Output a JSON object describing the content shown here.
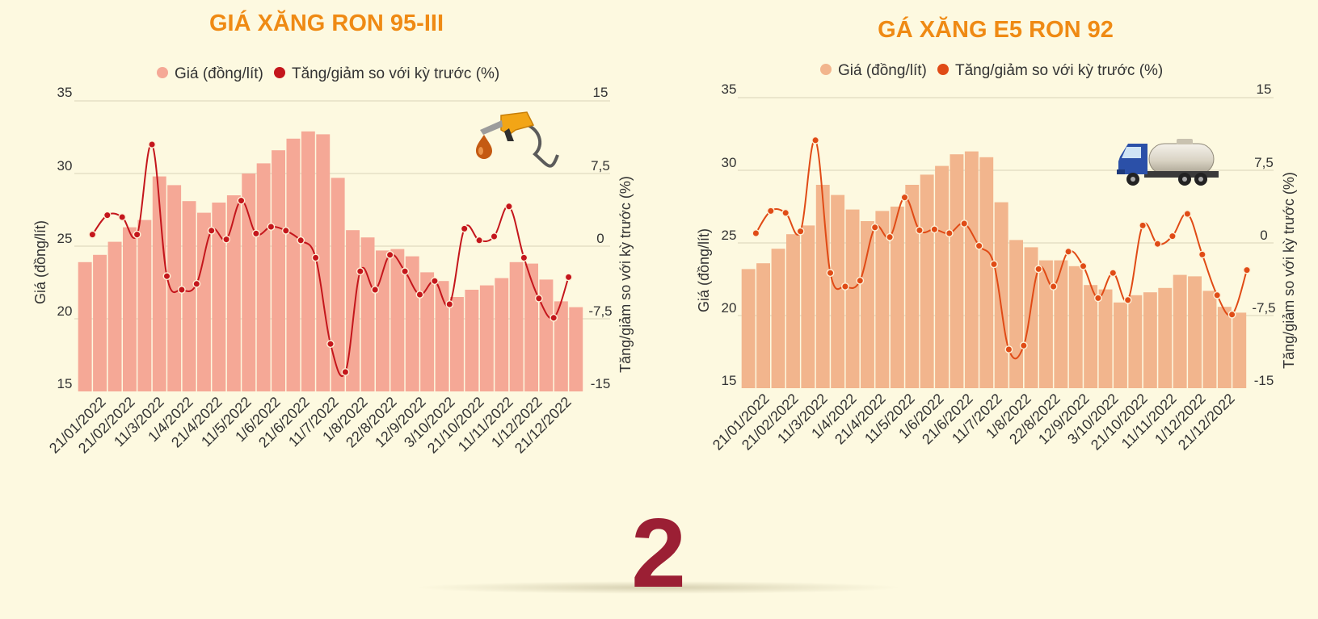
{
  "colors": {
    "background": "#fdf9e0",
    "title": "#ef8a14",
    "page_number": "#9b1f34"
  },
  "page_number": "2",
  "chart_data": [
    {
      "type": "bar",
      "title": "GIÁ XĂNG RON 95-III",
      "ylabel": "Giá (đồng/lít)",
      "y2label": "Tăng/giảm so với kỳ trước (%)",
      "ylim": [
        15,
        35
      ],
      "y2lim": [
        -15,
        15
      ],
      "yticks": [
        "35",
        "30",
        "25",
        "20",
        "15"
      ],
      "y2ticks": [
        "15",
        "7,5",
        "0",
        "-7,5",
        "-15"
      ],
      "legend_position": "top",
      "icon": "fuel-pump-icon",
      "bar_color": "#f5a896",
      "line_color": "#c4161c",
      "x_tick_labels": [
        "21/01/2022",
        "21/02/2022",
        "11/3/2022",
        "1/4/2022",
        "21/4/2022",
        "11/5/2022",
        "1/6/2022",
        "21/6/2022",
        "11/7/2022",
        "1/8/2022",
        "22/8/2022",
        "12/9/2022",
        "3/10/2022",
        "21/10/2022",
        "11/11/2022",
        "1/12/2022",
        "21/12/2022"
      ],
      "series": [
        {
          "name": "Giá (đồng/lít)",
          "type": "bar",
          "values": [
            23.9,
            24.4,
            25.3,
            26.3,
            26.8,
            29.8,
            29.2,
            28.1,
            27.3,
            28.0,
            28.5,
            30.0,
            30.7,
            31.6,
            32.4,
            32.9,
            32.7,
            29.7,
            26.1,
            25.6,
            24.7,
            24.8,
            24.3,
            23.2,
            22.6,
            21.5,
            22.0,
            22.3,
            22.8,
            23.9,
            23.8,
            22.7,
            21.2,
            20.8
          ]
        },
        {
          "name": "Tăng/giảm so với kỳ trước (%)",
          "type": "line",
          "values": [
            1.2,
            3.2,
            3.0,
            1.2,
            10.5,
            -3.1,
            -4.5,
            -3.9,
            1.6,
            0.7,
            4.7,
            1.3,
            2.0,
            1.6,
            0.6,
            -1.2,
            -10.1,
            -13.0,
            -2.6,
            -4.5,
            -0.9,
            -2.6,
            -5.0,
            -3.6,
            -6.0,
            1.8,
            0.6,
            1.0,
            4.1,
            -1.2,
            -5.4,
            -7.4,
            -3.2
          ]
        }
      ]
    },
    {
      "type": "bar",
      "title": "GÁ XĂNG E5 RON 92",
      "ylabel": "Giá (đồng/lít)",
      "y2label": "Tăng/giảm so với kỳ trước (%)",
      "ylim": [
        15,
        35
      ],
      "y2lim": [
        -15,
        15
      ],
      "yticks": [
        "35",
        "30",
        "25",
        "20",
        "15"
      ],
      "y2ticks": [
        "15",
        "7,5",
        "0",
        "-7,5",
        "-15"
      ],
      "legend_position": "top",
      "icon": "tanker-truck-icon",
      "bar_color": "#f2b58d",
      "line_color": "#e04b16",
      "x_tick_labels": [
        "21/01/2022",
        "21/02/2022",
        "11/3/2022",
        "1/4/2022",
        "21/4/2022",
        "11/5/2022",
        "1/6/2022",
        "21/6/2022",
        "11/7/2022",
        "1/8/2022",
        "22/8/2022",
        "12/9/2022",
        "3/10/2022",
        "21/10/2022",
        "11/11/2022",
        "1/12/2022",
        "21/12/2022"
      ],
      "series": [
        {
          "name": "Giá (đồng/lít)",
          "type": "bar",
          "values": [
            23.2,
            23.6,
            24.6,
            25.6,
            26.2,
            29.0,
            28.3,
            27.3,
            26.5,
            27.2,
            27.5,
            29.0,
            29.7,
            30.3,
            31.1,
            31.3,
            30.9,
            27.8,
            25.2,
            24.7,
            23.8,
            23.8,
            23.4,
            22.1,
            21.8,
            20.9,
            21.4,
            21.6,
            21.9,
            22.8,
            22.7,
            21.7,
            20.6,
            20.2
          ]
        },
        {
          "name": "Tăng/giảm so với kỳ trước (%)",
          "type": "line",
          "values": [
            1.0,
            3.3,
            3.1,
            1.2,
            10.6,
            -3.1,
            -4.5,
            -3.9,
            1.6,
            0.6,
            4.7,
            1.3,
            1.4,
            1.0,
            2.0,
            -0.3,
            -2.2,
            -11.0,
            -10.6,
            -2.7,
            -4.5,
            -0.9,
            -2.4,
            -5.7,
            -3.1,
            -5.9,
            1.8,
            -0.1,
            0.7,
            3.0,
            -1.2,
            -5.4,
            -7.4,
            -2.8
          ]
        }
      ]
    }
  ]
}
